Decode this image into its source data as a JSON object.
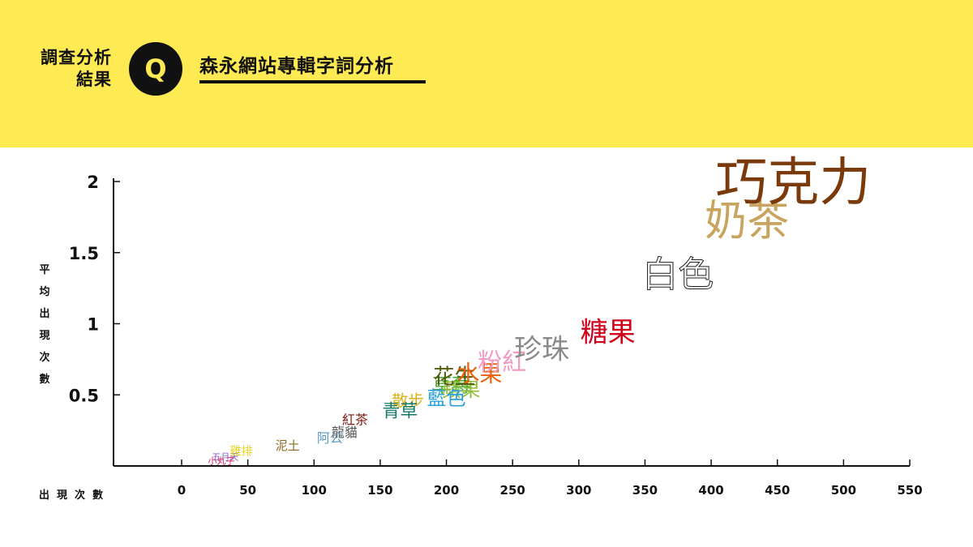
{
  "header": {
    "tag_line1": "調查分析",
    "tag_line2": "結果",
    "q_letter": "Q",
    "topic": "森永網站專輯字詞分析",
    "banner_color": "#feea52"
  },
  "chart_data": {
    "type": "scatter",
    "xlabel": "出現次數",
    "ylabel": "平均出現次數",
    "xlim": [
      0,
      550
    ],
    "ylim": [
      0,
      2
    ],
    "x_ticks": [
      "0",
      "50",
      "100",
      "150",
      "200",
      "250",
      "300",
      "350",
      "400",
      "450",
      "500",
      "550"
    ],
    "y_ticks": [
      "0.5",
      "1",
      "1.5",
      "2"
    ],
    "x_tick_values": [
      0,
      50,
      100,
      150,
      200,
      250,
      300,
      350,
      400,
      450,
      500,
      550
    ],
    "y_tick_values": [
      0.5,
      1,
      1.5,
      2
    ],
    "grid": false,
    "points": [
      {
        "label": "巧克力",
        "x": 462,
        "y": 1.97,
        "color": "#7a3a0c",
        "size": 64,
        "outline": false
      },
      {
        "label": "奶茶",
        "x": 427,
        "y": 1.7,
        "color": "#c8a45e",
        "size": 52,
        "outline": false
      },
      {
        "label": "白色",
        "x": 375,
        "y": 1.33,
        "color": "#ffffff",
        "size": 44,
        "outline": true
      },
      {
        "label": "糖果",
        "x": 322,
        "y": 0.93,
        "color": "#d0021b",
        "size": 34,
        "outline": false
      },
      {
        "label": "珍珠",
        "x": 272,
        "y": 0.81,
        "color": "#8a8a8a",
        "size": 34,
        "outline": false
      },
      {
        "label": "粉紅",
        "x": 242,
        "y": 0.72,
        "color": "#f29bc4",
        "size": 30,
        "outline": false
      },
      {
        "label": "水果",
        "x": 225,
        "y": 0.64,
        "color": "#e8600a",
        "size": 28,
        "outline": false
      },
      {
        "label": "花生",
        "x": 206,
        "y": 0.62,
        "color": "#555b10",
        "size": 26,
        "outline": false
      },
      {
        "label": "草莓",
        "x": 204,
        "y": 0.56,
        "color": "#4aa830",
        "size": 24,
        "outline": false
      },
      {
        "label": "蘋果",
        "x": 211,
        "y": 0.53,
        "color": "#8fbf35",
        "size": 24,
        "outline": false
      },
      {
        "label": "藍色",
        "x": 200,
        "y": 0.47,
        "color": "#2aa2d8",
        "size": 24,
        "outline": false
      },
      {
        "label": "散步",
        "x": 171,
        "y": 0.45,
        "color": "#ddb11a",
        "size": 20,
        "outline": false
      },
      {
        "label": "青草",
        "x": 165,
        "y": 0.38,
        "color": "#127a6a",
        "size": 22,
        "outline": false
      },
      {
        "label": "紅茶",
        "x": 131,
        "y": 0.32,
        "color": "#7a1a12",
        "size": 16,
        "outline": false
      },
      {
        "label": "龍貓",
        "x": 123,
        "y": 0.23,
        "color": "#555555",
        "size": 16,
        "outline": false
      },
      {
        "label": "阿公",
        "x": 112,
        "y": 0.19,
        "color": "#5a9ac0",
        "size": 16,
        "outline": false
      },
      {
        "label": "泥土",
        "x": 80,
        "y": 0.14,
        "color": "#8a6a1a",
        "size": 15,
        "outline": false
      },
      {
        "label": "雞排",
        "x": 45,
        "y": 0.1,
        "color": "#e8d21a",
        "size": 14,
        "outline": false
      },
      {
        "label": "五月天",
        "x": 33,
        "y": 0.06,
        "color": "#8a5ac0",
        "size": 11,
        "outline": false
      },
      {
        "label": "小丸子",
        "x": 30,
        "y": 0.03,
        "color": "#e02060",
        "size": 11,
        "outline": false
      }
    ]
  }
}
